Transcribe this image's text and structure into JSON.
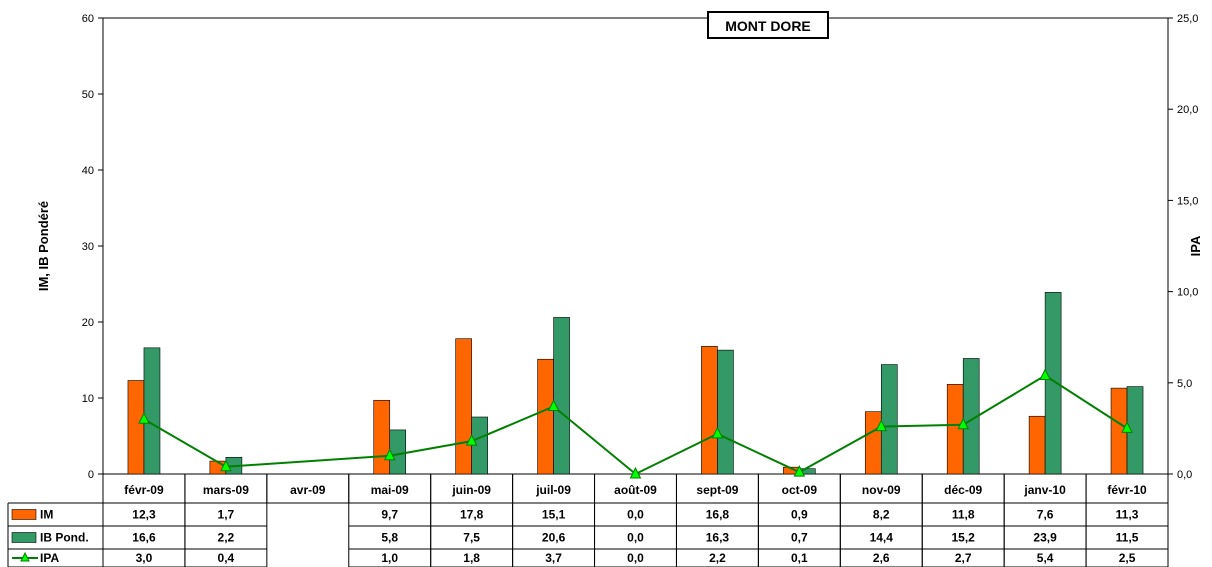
{
  "chart_data": {
    "type": "bar",
    "title": "MONT DORE",
    "categories": [
      "févr-09",
      "mars-09",
      "avr-09",
      "mai-09",
      "juin-09",
      "juil-09",
      "août-09",
      "sept-09",
      "oct-09",
      "nov-09",
      "déc-09",
      "janv-10",
      "févr-10"
    ],
    "series": [
      {
        "name": "IM",
        "type": "bar",
        "axis": "left",
        "color": "#ff6600",
        "values": [
          12.3,
          1.7,
          null,
          9.7,
          17.8,
          15.1,
          0.0,
          16.8,
          0.9,
          8.2,
          11.8,
          7.6,
          11.3
        ]
      },
      {
        "name": "IB Pond.",
        "type": "bar",
        "axis": "left",
        "color": "#339966",
        "values": [
          16.6,
          2.2,
          null,
          5.8,
          7.5,
          20.6,
          0.0,
          16.3,
          0.7,
          14.4,
          15.2,
          23.9,
          11.5
        ]
      },
      {
        "name": "IPA",
        "type": "line",
        "axis": "right",
        "color": "#008000",
        "marker": "triangle",
        "marker_color": "#00ff00",
        "values": [
          3.0,
          0.4,
          null,
          1.0,
          1.8,
          3.7,
          0.0,
          2.2,
          0.1,
          2.6,
          2.7,
          5.4,
          2.5
        ]
      }
    ],
    "ylabel": "IM, IB Pondéré",
    "y2label": "IPA",
    "ylim": [
      0,
      60
    ],
    "y2lim": [
      0,
      25
    ],
    "yticks": [
      "0",
      "10",
      "20",
      "30",
      "40",
      "50",
      "60"
    ],
    "y2ticks": [
      "0,0",
      "5,0",
      "10,0",
      "15,0",
      "20,0",
      "25,0"
    ],
    "table_labels": {
      "IM": [
        "12,3",
        "1,7",
        "",
        "9,7",
        "17,8",
        "15,1",
        "0,0",
        "16,8",
        "0,9",
        "8,2",
        "11,8",
        "7,6",
        "11,3"
      ],
      "IB Pond.": [
        "16,6",
        "2,2",
        "",
        "5,8",
        "7,5",
        "20,6",
        "0,0",
        "16,3",
        "0,7",
        "14,4",
        "15,2",
        "23,9",
        "11,5"
      ],
      "IPA": [
        "3,0",
        "0,4",
        "",
        "1,0",
        "1,8",
        "3,7",
        "0,0",
        "2,2",
        "0,1",
        "2,6",
        "2,7",
        "5,4",
        "2,5"
      ]
    },
    "grid": false,
    "legend": "data-table"
  }
}
